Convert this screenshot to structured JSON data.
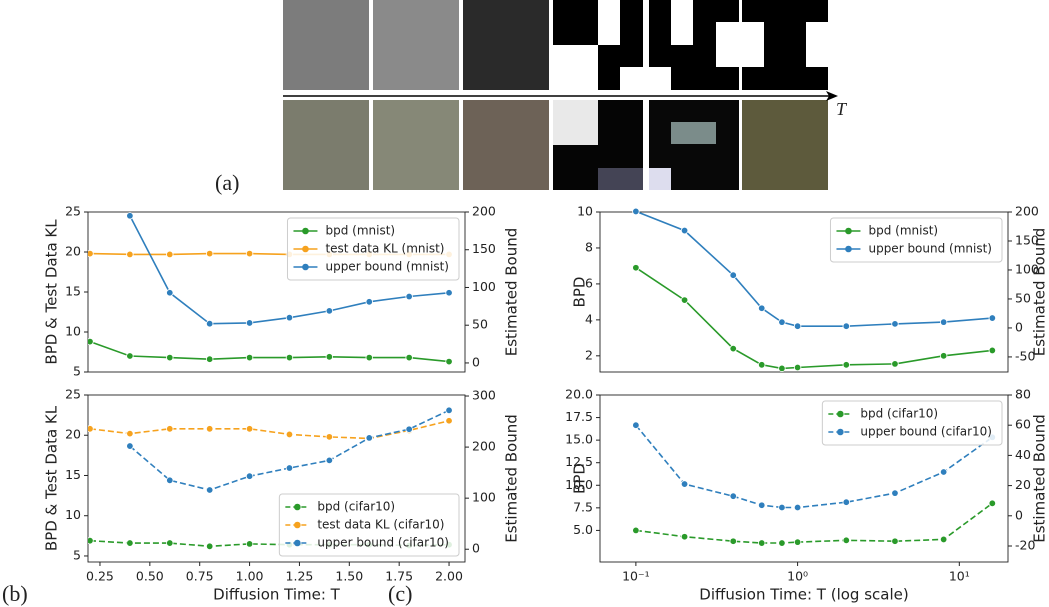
{
  "panel_a": {
    "label": "(a)",
    "axis_label": "T"
  },
  "panel_labels": {
    "b": "(b)",
    "c": "(c)"
  },
  "chart_data": [
    {
      "type": "line",
      "legend": "upper right",
      "ylabel": "BPD & Test Data KL",
      "y2label": "Estimated Bound",
      "x": [
        0.2,
        0.4,
        0.6,
        0.8,
        1.0,
        1.2,
        1.4,
        1.6,
        1.8,
        2.0
      ],
      "xlim": [
        0.19,
        2.08
      ],
      "ylim": [
        5,
        25
      ],
      "yticks": [
        5,
        10,
        15,
        20,
        25
      ],
      "y2lim": [
        -12,
        200
      ],
      "y2ticks": [
        0,
        50,
        100,
        150,
        200
      ],
      "series": [
        {
          "name": "bpd (mnist)",
          "color": "#2a9a2a",
          "linestyle": "solid",
          "values": [
            8.8,
            7.0,
            6.8,
            6.6,
            6.8,
            6.8,
            6.9,
            6.8,
            6.8,
            6.3
          ]
        },
        {
          "name": "test data KL (mnist)",
          "color": "#f6a21e",
          "linestyle": "solid",
          "values": [
            19.8,
            19.7,
            19.7,
            19.8,
            19.8,
            19.7,
            19.7,
            19.7,
            19.7,
            19.7
          ]
        },
        {
          "name": "upper bound (mnist)",
          "color": "#2f7fbd",
          "linestyle": "solid",
          "axis": "y2",
          "values": [
            null,
            195,
            93,
            52,
            53,
            60,
            69,
            81,
            88,
            93
          ]
        }
      ]
    },
    {
      "type": "line",
      "legend": "lower right",
      "ylabel": "BPD & Test Data KL",
      "y2label": "Estimated Bound",
      "xlabel": "Diffusion Time: T",
      "x": [
        0.2,
        0.4,
        0.6,
        0.8,
        1.0,
        1.2,
        1.4,
        1.6,
        1.8,
        2.0
      ],
      "xlim": [
        0.19,
        2.08
      ],
      "xticks": [
        0.25,
        {
          "value": 0.5,
          "label": "0.50"
        },
        0.75,
        {
          "value": 1.0,
          "label": "1.00"
        },
        1.25,
        {
          "value": 1.5,
          "label": "1.50"
        },
        1.75,
        {
          "value": 2.0,
          "label": "2.00"
        }
      ],
      "ylim": [
        4.25,
        25
      ],
      "yticks": [
        5,
        10,
        15,
        20,
        25
      ],
      "y2lim": [
        -25,
        302
      ],
      "y2ticks": [
        0,
        100,
        200,
        300
      ],
      "series": [
        {
          "name": "bpd (cifar10)",
          "color": "#2a9a2a",
          "linestyle": "dashed",
          "values": [
            6.9,
            6.6,
            6.6,
            6.2,
            6.5,
            6.4,
            6.4,
            6.4,
            6.3,
            6.4
          ]
        },
        {
          "name": "test data KL (cifar10)",
          "color": "#f6a21e",
          "linestyle": "dashed",
          "values": [
            20.8,
            20.2,
            20.8,
            20.8,
            20.8,
            20.1,
            19.8,
            19.6,
            20.6,
            21.8
          ]
        },
        {
          "name": "upper bound (cifar10)",
          "color": "#2f7fbd",
          "linestyle": "dashed",
          "axis": "y2",
          "values": [
            null,
            202,
            135,
            116,
            143,
            159,
            174,
            218,
            235,
            272
          ]
        }
      ]
    },
    {
      "type": "line",
      "legend": "upper right",
      "xscale": "log",
      "ylabel": "BPD",
      "y2label": "Estimated Bound",
      "x": [
        0.1,
        0.2,
        0.4,
        0.6,
        0.8,
        1,
        2,
        4,
        8,
        16
      ],
      "xlim": [
        0.06,
        20
      ],
      "ylim": [
        1.1,
        10
      ],
      "yticks": [
        2,
        4,
        6,
        8,
        10
      ],
      "y2lim": [
        -76,
        200
      ],
      "y2ticks": [
        -50,
        0,
        50,
        100,
        150,
        200
      ],
      "series": [
        {
          "name": "bpd (mnist)",
          "color": "#2a9a2a",
          "linestyle": "solid",
          "values": [
            6.9,
            5.1,
            2.4,
            1.5,
            1.3,
            1.35,
            1.5,
            1.55,
            2.0,
            2.3
          ]
        },
        {
          "name": "upper bound (mnist)",
          "color": "#2f7fbd",
          "linestyle": "solid",
          "axis": "y2",
          "values": [
            201,
            168,
            91,
            34,
            10,
            3,
            3,
            7,
            10,
            17
          ]
        }
      ]
    },
    {
      "type": "line",
      "legend": "upper right",
      "xscale": "log",
      "ylabel": "BPD",
      "y2label": "Estimated Bound",
      "xlabel": "Diffusion Time: T (log scale)",
      "x": [
        0.1,
        0.2,
        0.4,
        0.6,
        0.8,
        1,
        2,
        4,
        8,
        16
      ],
      "xlim": [
        0.06,
        20
      ],
      "xticks": [
        {
          "value": 0.1,
          "label": "10⁻¹"
        },
        {
          "value": 1,
          "label": "10⁰"
        },
        {
          "value": 10,
          "label": "10¹"
        }
      ],
      "ylim": [
        1.5,
        20
      ],
      "yticks": [
        {
          "value": 5,
          "label": "5.0"
        },
        7.5,
        {
          "value": 10,
          "label": "10.0"
        },
        12.5,
        {
          "value": 15,
          "label": "15.0"
        },
        17.5,
        {
          "value": 20,
          "label": "20.0"
        }
      ],
      "y2lim": [
        -30.6,
        80
      ],
      "y2ticks": [
        -20,
        0,
        20,
        40,
        60,
        80
      ],
      "series": [
        {
          "name": "bpd (cifar10)",
          "color": "#2a9a2a",
          "linestyle": "dashed",
          "values": [
            5.0,
            4.3,
            3.8,
            3.6,
            3.6,
            3.7,
            3.9,
            3.8,
            4.0,
            8.0
          ]
        },
        {
          "name": "upper bound (cifar10)",
          "color": "#2f7fbd",
          "linestyle": "dashed",
          "axis": "y2",
          "values": [
            60,
            21,
            13,
            7,
            5.5,
            5.5,
            9,
            15,
            29,
            52
          ]
        }
      ]
    }
  ]
}
